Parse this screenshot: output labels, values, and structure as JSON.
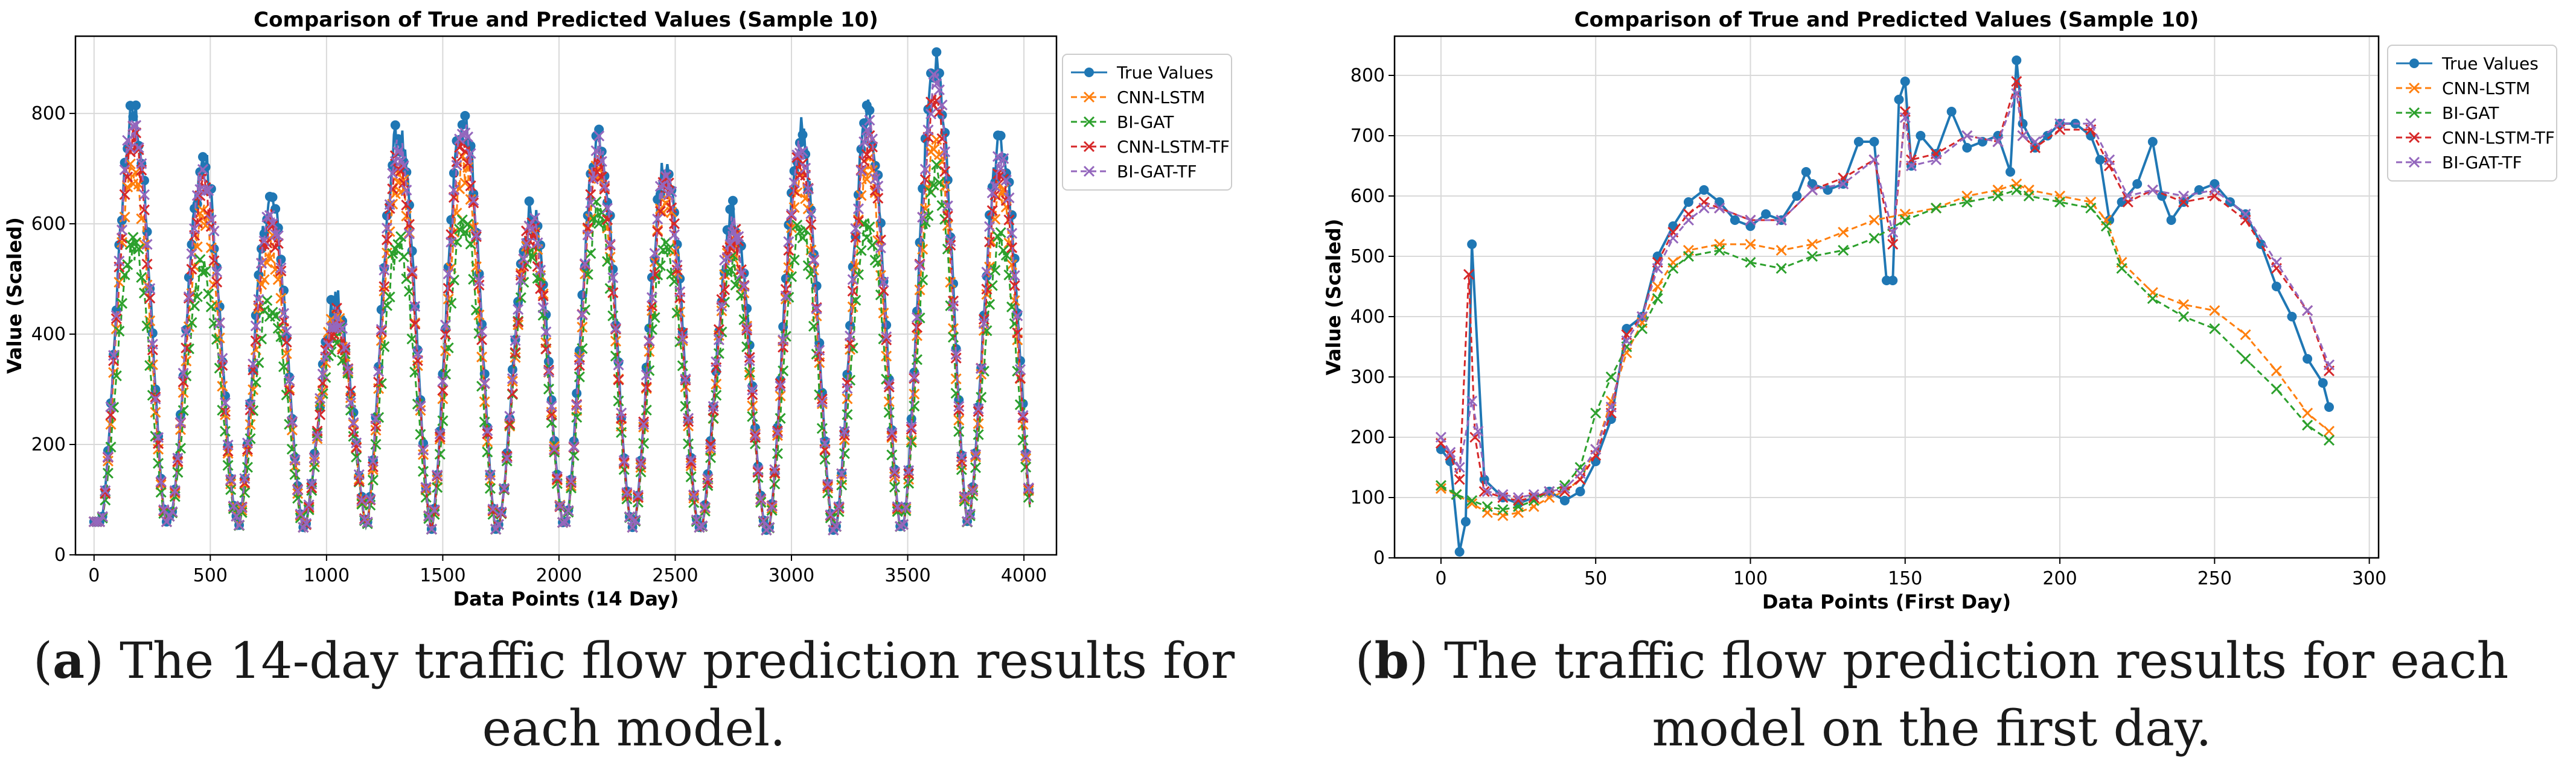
{
  "chart_data": [
    {
      "type": "line",
      "title": "Comparison of True and Predicted Values (Sample 10)",
      "xlabel": "Data Points (14 Day)",
      "ylabel": "Value (Scaled)",
      "xlim": [
        -80,
        4140
      ],
      "ylim": [
        0,
        940
      ],
      "xticks": [
        0,
        500,
        1000,
        1500,
        2000,
        2500,
        3000,
        3500,
        4000
      ],
      "yticks": [
        0,
        200,
        400,
        600,
        800
      ],
      "grid": true,
      "legend_position": "upper-right-outside",
      "series": [
        {
          "name": "True Values",
          "color": "#1f77b4",
          "marker": "circle"
        },
        {
          "name": "CNN-LSTM",
          "color": "#ff7f0e",
          "marker": "x",
          "linestyle": "dashed"
        },
        {
          "name": "BI-GAT",
          "color": "#2ca02c",
          "marker": "x",
          "linestyle": "dashed"
        },
        {
          "name": "CNN-LSTM-TF",
          "color": "#d62728",
          "marker": "x",
          "linestyle": "dashed"
        },
        {
          "name": "BI-GAT-TF",
          "color": "#9467bd",
          "marker": "x",
          "linestyle": "dashed"
        }
      ],
      "daily_peaks": {
        "centers": [
          170,
          470,
          760,
          1040,
          1310,
          1590,
          1880,
          2170,
          2460,
          2750,
          3040,
          3330,
          3620,
          3900
        ],
        "true_peak": [
          800,
          710,
          640,
          450,
          760,
          800,
          620,
          760,
          700,
          610,
          760,
          790,
          880,
          740
        ],
        "cnn_lstm_peak": [
          700,
          620,
          560,
          420,
          690,
          700,
          590,
          700,
          640,
          560,
          690,
          700,
          760,
          660
        ],
        "bi_gat_peak": [
          560,
          520,
          460,
          400,
          560,
          600,
          560,
          620,
          560,
          520,
          590,
          600,
          700,
          570
        ],
        "trough": [
          60,
          70,
          50,
          40,
          50,
          45,
          55,
          60,
          50,
          45,
          45,
          50,
          55,
          60
        ]
      }
    },
    {
      "type": "line",
      "title": "Comparison of True and Predicted Values (Sample 10)",
      "xlabel": "Data Points (First Day)",
      "ylabel": "Value (Scaled)",
      "xlim": [
        -15,
        303
      ],
      "ylim": [
        0,
        865
      ],
      "xticks": [
        0,
        50,
        100,
        150,
        200,
        250,
        300
      ],
      "yticks": [
        0,
        100,
        200,
        300,
        400,
        500,
        600,
        700,
        800
      ],
      "grid": true,
      "legend_position": "upper-right-outside",
      "series": [
        {
          "name": "True Values",
          "color": "#1f77b4",
          "marker": "circle",
          "x": [
            0,
            3,
            6,
            8,
            10,
            14,
            20,
            25,
            30,
            35,
            40,
            45,
            50,
            55,
            60,
            65,
            70,
            75,
            80,
            85,
            90,
            95,
            100,
            105,
            110,
            115,
            118,
            120,
            125,
            130,
            135,
            140,
            144,
            146,
            148,
            150,
            152,
            155,
            160,
            165,
            170,
            175,
            180,
            184,
            186,
            188,
            192,
            196,
            200,
            205,
            210,
            213,
            216,
            220,
            225,
            230,
            233,
            236,
            240,
            245,
            250,
            255,
            260,
            265,
            270,
            275,
            280,
            285,
            287
          ],
          "y": [
            180,
            160,
            10,
            60,
            520,
            130,
            100,
            90,
            100,
            110,
            95,
            110,
            160,
            230,
            380,
            400,
            500,
            550,
            590,
            610,
            590,
            560,
            550,
            570,
            560,
            600,
            640,
            620,
            610,
            620,
            690,
            690,
            460,
            460,
            760,
            790,
            650,
            700,
            670,
            740,
            680,
            690,
            700,
            640,
            825,
            720,
            680,
            700,
            720,
            720,
            700,
            660,
            560,
            590,
            620,
            690,
            600,
            560,
            590,
            610,
            620,
            590,
            570,
            520,
            450,
            400,
            330,
            290,
            250
          ]
        },
        {
          "name": "CNN-LSTM",
          "color": "#ff7f0e",
          "marker": "x",
          "linestyle": "dashed",
          "x": [
            0,
            5,
            10,
            15,
            20,
            25,
            30,
            35,
            40,
            45,
            50,
            55,
            60,
            65,
            70,
            75,
            80,
            90,
            100,
            110,
            120,
            130,
            140,
            150,
            160,
            170,
            180,
            186,
            190,
            200,
            210,
            215,
            220,
            230,
            240,
            250,
            260,
            270,
            280,
            287
          ],
          "y": [
            115,
            105,
            90,
            75,
            70,
            75,
            85,
            100,
            110,
            130,
            180,
            260,
            340,
            390,
            450,
            490,
            510,
            520,
            520,
            510,
            520,
            540,
            560,
            570,
            580,
            600,
            610,
            620,
            610,
            600,
            590,
            560,
            490,
            440,
            420,
            410,
            370,
            310,
            240,
            210
          ]
        },
        {
          "name": "BI-GAT",
          "color": "#2ca02c",
          "marker": "x",
          "linestyle": "dashed",
          "x": [
            0,
            5,
            10,
            15,
            20,
            25,
            30,
            35,
            40,
            45,
            50,
            55,
            60,
            65,
            70,
            75,
            80,
            90,
            100,
            110,
            120,
            130,
            140,
            150,
            160,
            170,
            180,
            186,
            190,
            200,
            210,
            215,
            220,
            230,
            240,
            250,
            260,
            270,
            280,
            287
          ],
          "y": [
            120,
            105,
            95,
            85,
            80,
            85,
            95,
            110,
            120,
            150,
            240,
            300,
            350,
            380,
            430,
            480,
            500,
            510,
            490,
            480,
            500,
            510,
            530,
            560,
            580,
            590,
            600,
            610,
            600,
            590,
            580,
            550,
            480,
            430,
            400,
            380,
            330,
            280,
            220,
            195
          ]
        },
        {
          "name": "CNN-LSTM-TF",
          "color": "#d62728",
          "marker": "x",
          "linestyle": "dashed",
          "x": [
            0,
            3,
            6,
            9,
            11,
            14,
            20,
            25,
            30,
            35,
            40,
            45,
            50,
            55,
            60,
            65,
            70,
            75,
            80,
            85,
            90,
            100,
            110,
            120,
            130,
            140,
            146,
            150,
            152,
            160,
            170,
            180,
            186,
            188,
            192,
            200,
            210,
            216,
            222,
            230,
            240,
            250,
            260,
            270,
            280,
            287
          ],
          "y": [
            190,
            170,
            130,
            470,
            200,
            110,
            100,
            95,
            100,
            110,
            110,
            130,
            170,
            240,
            370,
            400,
            490,
            540,
            570,
            590,
            580,
            560,
            560,
            610,
            630,
            660,
            520,
            740,
            660,
            670,
            700,
            690,
            790,
            700,
            680,
            710,
            710,
            650,
            590,
            610,
            590,
            600,
            560,
            480,
            410,
            310
          ]
        },
        {
          "name": "BI-GAT-TF",
          "color": "#9467bd",
          "marker": "x",
          "linestyle": "dashed",
          "x": [
            0,
            3,
            6,
            10,
            12,
            15,
            20,
            25,
            30,
            35,
            40,
            45,
            50,
            55,
            60,
            65,
            70,
            75,
            80,
            85,
            90,
            100,
            110,
            120,
            130,
            140,
            146,
            150,
            152,
            160,
            170,
            180,
            186,
            188,
            192,
            200,
            210,
            216,
            222,
            230,
            240,
            250,
            260,
            270,
            280,
            287
          ],
          "y": [
            200,
            175,
            150,
            260,
            210,
            110,
            105,
            100,
            105,
            110,
            115,
            140,
            180,
            250,
            360,
            400,
            480,
            530,
            560,
            580,
            580,
            560,
            560,
            610,
            620,
            660,
            540,
            730,
            650,
            660,
            700,
            690,
            770,
            700,
            690,
            720,
            720,
            660,
            600,
            610,
            600,
            610,
            570,
            490,
            410,
            320
          ]
        }
      ]
    }
  ],
  "captions": {
    "a": {
      "label": "a",
      "text": ") The 14-day traffic flow prediction results for each model."
    },
    "b": {
      "label": "b",
      "text": ") The traffic flow prediction results for each model on the first day."
    }
  }
}
